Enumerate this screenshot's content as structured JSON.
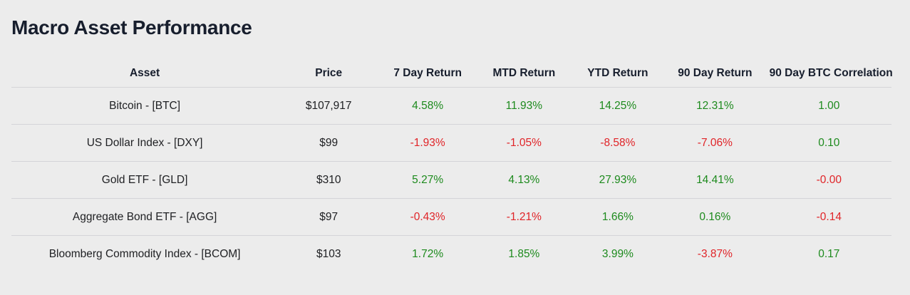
{
  "page": {
    "title": "Macro Asset Performance"
  },
  "colors": {
    "background": "#ececec",
    "heading_text": "#171e2d",
    "body_text": "#202124",
    "divider": "#d4d4d8",
    "positive_text": "#1d8a1d",
    "negative_text": "#e02428"
  },
  "table": {
    "columns": [
      "Asset",
      "Price",
      "7 Day Return",
      "MTD Return",
      "YTD Return",
      "90 Day Return",
      "90 Day BTC Correlation"
    ],
    "field_order": [
      "asset",
      "price",
      "return_7d",
      "return_mtd",
      "return_ytd",
      "return_90d",
      "btc_correlation_90d"
    ],
    "colored_fields_start_index": 2,
    "rows": [
      {
        "asset": "Bitcoin - [BTC]",
        "price": "$107,917",
        "return_7d": "4.58%",
        "return_mtd": "11.93%",
        "return_ytd": "14.25%",
        "return_90d": "12.31%",
        "btc_correlation_90d": "1.00"
      },
      {
        "asset": "US Dollar Index - [DXY]",
        "price": "$99",
        "return_7d": "-1.93%",
        "return_mtd": "-1.05%",
        "return_ytd": "-8.58%",
        "return_90d": "-7.06%",
        "btc_correlation_90d": "0.10"
      },
      {
        "asset": "Gold ETF - [GLD]",
        "price": "$310",
        "return_7d": "5.27%",
        "return_mtd": "4.13%",
        "return_ytd": "27.93%",
        "return_90d": "14.41%",
        "btc_correlation_90d": "-0.00"
      },
      {
        "asset": "Aggregate Bond ETF - [AGG]",
        "price": "$97",
        "return_7d": "-0.43%",
        "return_mtd": "-1.21%",
        "return_ytd": "1.66%",
        "return_90d": "0.16%",
        "btc_correlation_90d": "-0.14"
      },
      {
        "asset": "Bloomberg Commodity Index - [BCOM]",
        "price": "$103",
        "return_7d": "1.72%",
        "return_mtd": "1.85%",
        "return_ytd": "3.99%",
        "return_90d": "-3.87%",
        "btc_correlation_90d": "0.17"
      }
    ]
  }
}
